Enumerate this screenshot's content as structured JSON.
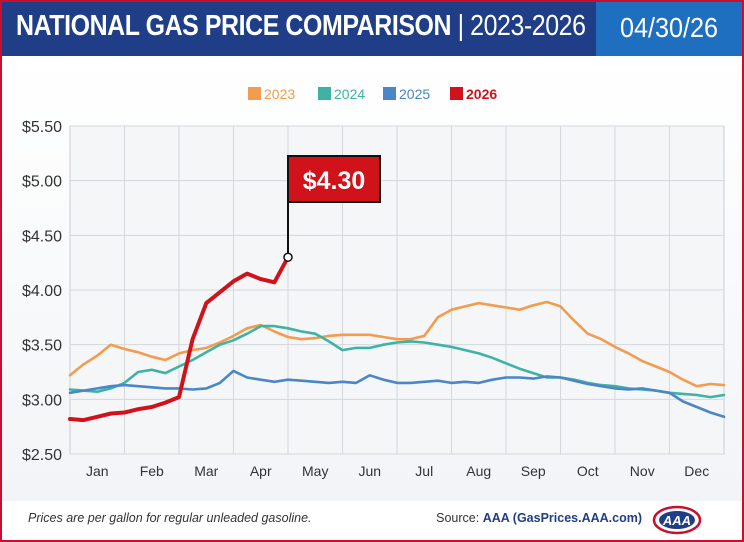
{
  "header": {
    "title_main": "NATIONAL GAS PRICE COMPARISON",
    "title_sep": " | ",
    "title_range": "2023-2026",
    "date": "04/30/26"
  },
  "footer": {
    "note": "Prices are per gallon for regular unleaded gasoline.",
    "source_prefix": "Source: ",
    "source_name": "AAA (GasPrices.AAA.com)",
    "logo_text": "AAA"
  },
  "colors": {
    "header_bg": "#1f3e87",
    "date_bg": "#1e6fc0",
    "border": "#c8102e",
    "s2023": "#f39c4f",
    "s2024": "#3fb3a3",
    "s2025": "#4a86c8",
    "s2026": "#d0121b"
  },
  "chart_data": {
    "type": "line",
    "ylim": [
      2.5,
      5.5
    ],
    "xlim": [
      0,
      12
    ],
    "yticks": [
      2.5,
      3.0,
      3.5,
      4.0,
      4.5,
      5.0,
      5.5
    ],
    "ytick_labels": [
      "$2.50",
      "$3.00",
      "$3.50",
      "$4.00",
      "$4.50",
      "$5.00",
      "$5.50"
    ],
    "categories": [
      "Jan",
      "Feb",
      "Mar",
      "Apr",
      "May",
      "Jun",
      "Jul",
      "Aug",
      "Sep",
      "Oct",
      "Nov",
      "Dec"
    ],
    "grid": true,
    "legend": "top-center",
    "callout": {
      "label": "$4.30",
      "x": 4.0,
      "y": 4.3
    },
    "series": [
      {
        "name": "2023",
        "x": [
          0.0,
          0.25,
          0.5,
          0.75,
          1.0,
          1.25,
          1.5,
          1.75,
          2.0,
          2.25,
          2.5,
          2.75,
          3.0,
          3.25,
          3.5,
          3.75,
          4.0,
          4.25,
          4.5,
          4.75,
          5.0,
          5.25,
          5.5,
          5.75,
          6.0,
          6.25,
          6.5,
          6.75,
          7.0,
          7.25,
          7.5,
          7.75,
          8.0,
          8.25,
          8.5,
          8.75,
          9.0,
          9.25,
          9.5,
          9.75,
          10.0,
          10.25,
          10.5,
          10.75,
          11.0,
          11.25,
          11.5,
          11.75,
          12.0
        ],
        "values": [
          3.22,
          3.32,
          3.4,
          3.5,
          3.46,
          3.43,
          3.39,
          3.36,
          3.42,
          3.45,
          3.47,
          3.52,
          3.58,
          3.65,
          3.68,
          3.62,
          3.57,
          3.55,
          3.56,
          3.58,
          3.59,
          3.59,
          3.59,
          3.57,
          3.55,
          3.55,
          3.58,
          3.75,
          3.82,
          3.85,
          3.88,
          3.86,
          3.84,
          3.82,
          3.86,
          3.89,
          3.85,
          3.72,
          3.6,
          3.55,
          3.48,
          3.42,
          3.35,
          3.3,
          3.25,
          3.18,
          3.12,
          3.14,
          3.13
        ]
      },
      {
        "name": "2024",
        "x": [
          0.0,
          0.25,
          0.5,
          0.75,
          1.0,
          1.25,
          1.5,
          1.75,
          2.0,
          2.25,
          2.5,
          2.75,
          3.0,
          3.25,
          3.5,
          3.75,
          4.0,
          4.25,
          4.5,
          4.75,
          5.0,
          5.25,
          5.5,
          5.75,
          6.0,
          6.25,
          6.5,
          6.75,
          7.0,
          7.25,
          7.5,
          7.75,
          8.0,
          8.25,
          8.5,
          8.75,
          9.0,
          9.25,
          9.5,
          9.75,
          10.0,
          10.25,
          10.5,
          10.75,
          11.0,
          11.25,
          11.5,
          11.75,
          12.0
        ],
        "values": [
          3.09,
          3.08,
          3.07,
          3.1,
          3.15,
          3.25,
          3.27,
          3.24,
          3.3,
          3.36,
          3.43,
          3.5,
          3.54,
          3.6,
          3.67,
          3.67,
          3.65,
          3.62,
          3.6,
          3.53,
          3.45,
          3.47,
          3.47,
          3.5,
          3.52,
          3.53,
          3.52,
          3.5,
          3.48,
          3.45,
          3.42,
          3.38,
          3.33,
          3.28,
          3.24,
          3.2,
          3.2,
          3.18,
          3.15,
          3.13,
          3.12,
          3.1,
          3.09,
          3.08,
          3.06,
          3.05,
          3.04,
          3.02,
          3.04
        ]
      },
      {
        "name": "2025",
        "x": [
          0.0,
          0.25,
          0.5,
          0.75,
          1.0,
          1.25,
          1.5,
          1.75,
          2.0,
          2.25,
          2.5,
          2.75,
          3.0,
          3.25,
          3.5,
          3.75,
          4.0,
          4.25,
          4.5,
          4.75,
          5.0,
          5.25,
          5.5,
          5.75,
          6.0,
          6.25,
          6.5,
          6.75,
          7.0,
          7.25,
          7.5,
          7.75,
          8.0,
          8.25,
          8.5,
          8.75,
          9.0,
          9.25,
          9.5,
          9.75,
          10.0,
          10.25,
          10.5,
          10.75,
          11.0,
          11.25,
          11.5,
          11.75,
          12.0
        ],
        "values": [
          3.06,
          3.08,
          3.1,
          3.12,
          3.13,
          3.12,
          3.11,
          3.1,
          3.1,
          3.09,
          3.1,
          3.15,
          3.26,
          3.2,
          3.18,
          3.16,
          3.18,
          3.17,
          3.16,
          3.15,
          3.16,
          3.15,
          3.22,
          3.18,
          3.15,
          3.15,
          3.16,
          3.17,
          3.15,
          3.16,
          3.15,
          3.18,
          3.2,
          3.2,
          3.19,
          3.21,
          3.2,
          3.17,
          3.14,
          3.12,
          3.1,
          3.09,
          3.1,
          3.08,
          3.06,
          2.98,
          2.93,
          2.88,
          2.84
        ]
      },
      {
        "name": "2026",
        "x": [
          0.0,
          0.25,
          0.5,
          0.75,
          1.0,
          1.25,
          1.5,
          1.75,
          2.0,
          2.25,
          2.5,
          2.75,
          3.0,
          3.25,
          3.5,
          3.75,
          4.0
        ],
        "values": [
          2.82,
          2.81,
          2.84,
          2.87,
          2.88,
          2.91,
          2.93,
          2.97,
          3.02,
          3.55,
          3.88,
          3.98,
          4.08,
          4.15,
          4.1,
          4.07,
          4.3
        ]
      }
    ]
  }
}
